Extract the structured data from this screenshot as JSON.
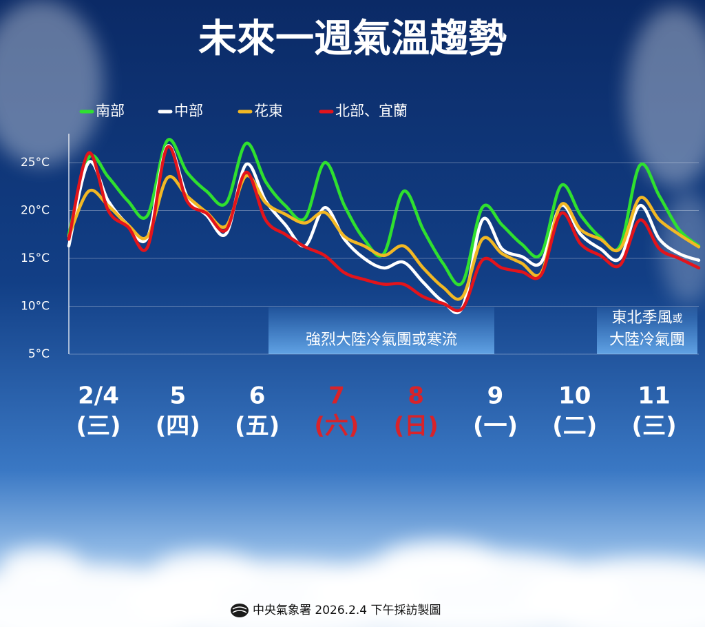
{
  "chart_data": {
    "type": "line",
    "title": "未來一週氣溫趨勢",
    "ylim": [
      5,
      28
    ],
    "yticks": [
      {
        "value": 5,
        "label": "5°C"
      },
      {
        "value": 10,
        "label": "10°C"
      },
      {
        "value": 15,
        "label": "15°C"
      },
      {
        "value": 20,
        "label": "20°C"
      },
      {
        "value": 25,
        "label": "25°C"
      }
    ],
    "grid": true,
    "series": [
      {
        "name": "南部",
        "color": "#2fe02f",
        "values": [
          17.5,
          25.5,
          23.5,
          21,
          19.5,
          27.3,
          24,
          22,
          20.8,
          27,
          23,
          20.5,
          19.2,
          25,
          20.5,
          17,
          15.5,
          22,
          18,
          14.5,
          12.5,
          20.3,
          18.5,
          16.5,
          15.5,
          22.6,
          19.5,
          17.2,
          16.3,
          24.7,
          21.5,
          18,
          16.3
        ]
      },
      {
        "name": "中部",
        "color": "#ffffff",
        "values": [
          16.3,
          25,
          21,
          18.5,
          17.2,
          26.7,
          21.5,
          19.5,
          17.6,
          24.8,
          21,
          18.5,
          16.3,
          20.3,
          17,
          15,
          14,
          14.6,
          12.5,
          10.5,
          9.9,
          19,
          16,
          15.2,
          14.6,
          20.5,
          17.5,
          16,
          15,
          20.5,
          17,
          15.5,
          14.8
        ]
      },
      {
        "name": "花東",
        "color": "#f2b824",
        "values": [
          17.3,
          22,
          20.5,
          18.5,
          17.3,
          23.4,
          21.5,
          19.8,
          18.4,
          23.6,
          20.8,
          19.6,
          18.7,
          19.8,
          17.3,
          16.3,
          15.3,
          16.3,
          14,
          12,
          11,
          17,
          15.5,
          14.5,
          13.5,
          20.6,
          18,
          17,
          16,
          21.3,
          19,
          17.5,
          16.2
        ]
      },
      {
        "name": "北部、宜蘭",
        "color": "#e3141b",
        "values": [
          17,
          26,
          20,
          18.3,
          16.2,
          26.6,
          21,
          19.7,
          18,
          24,
          19,
          17.5,
          16.2,
          15.3,
          13.5,
          12.8,
          12.3,
          12.3,
          11,
          10.3,
          9.8,
          14.8,
          14,
          13.6,
          13.3,
          19.7,
          16.5,
          15.3,
          14.3,
          19,
          16,
          15,
          14
        ]
      }
    ],
    "days": [
      {
        "date": "2/4",
        "weekday": "(三)",
        "color": "#ffffff"
      },
      {
        "date": "5",
        "weekday": "(四)",
        "color": "#ffffff"
      },
      {
        "date": "6",
        "weekday": "(五)",
        "color": "#ffffff"
      },
      {
        "date": "7",
        "weekday": "(六)",
        "color": "#d8232a"
      },
      {
        "date": "8",
        "weekday": "(日)",
        "color": "#d8232a"
      },
      {
        "date": "9",
        "weekday": "(一)",
        "color": "#ffffff"
      },
      {
        "date": "10",
        "weekday": "(二)",
        "color": "#ffffff"
      },
      {
        "date": "11",
        "weekday": "(三)",
        "color": "#ffffff"
      }
    ],
    "annotations": [
      {
        "text": "強烈大陸冷氣團或寒流"
      },
      {
        "line1": "東北季風",
        "small": "或",
        "line2": "大陸冷氣團"
      }
    ],
    "footer": "中央氣象署 2026.2.4 下午採訪製圖"
  }
}
